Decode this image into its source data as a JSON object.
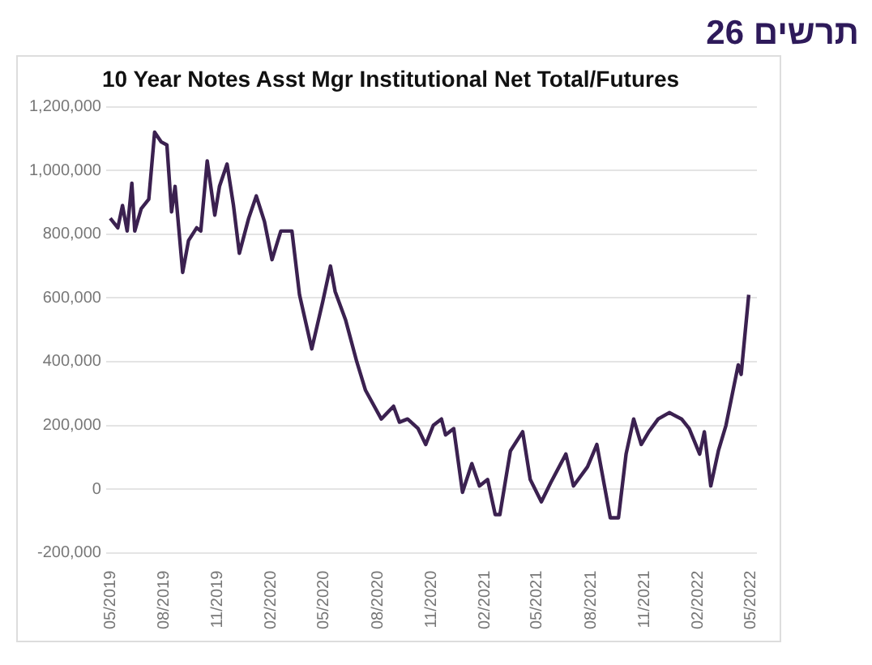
{
  "chart_data": {
    "type": "line",
    "title": "10 Year Notes Asst Mgr Institutional Net Total/Futures",
    "annotations": [
      "תרשים 26"
    ],
    "x": [
      "2019-05-01",
      "2019-05-14",
      "2019-05-22",
      "2019-05-30",
      "2019-06-07",
      "2019-06-12",
      "2019-06-23",
      "2019-07-06",
      "2019-07-16",
      "2019-07-27",
      "2019-08-06",
      "2019-08-14",
      "2019-08-20",
      "2019-09-02",
      "2019-09-12",
      "2019-09-26",
      "2019-10-03",
      "2019-10-14",
      "2019-10-27",
      "2019-11-04",
      "2019-11-17",
      "2019-11-28",
      "2019-12-08",
      "2019-12-24",
      "2020-01-06",
      "2020-01-20",
      "2020-02-02",
      "2020-02-17",
      "2020-03-07",
      "2020-03-20",
      "2020-04-10",
      "2020-04-29",
      "2020-05-12",
      "2020-05-20",
      "2020-06-07",
      "2020-06-26",
      "2020-07-11",
      "2020-08-07",
      "2020-08-28",
      "2020-09-07",
      "2020-09-21",
      "2020-10-09",
      "2020-10-22",
      "2020-11-04",
      "2020-11-18",
      "2020-11-25",
      "2020-12-09",
      "2020-12-24",
      "2021-01-09",
      "2021-01-22",
      "2021-02-05",
      "2021-02-18",
      "2021-02-26",
      "2021-03-16",
      "2021-04-06",
      "2021-04-19",
      "2021-05-08",
      "2021-05-24",
      "2021-06-19",
      "2021-07-02",
      "2021-07-26",
      "2021-08-11",
      "2021-08-24",
      "2021-09-03",
      "2021-09-17",
      "2021-09-30",
      "2021-10-13",
      "2021-10-26",
      "2021-11-08",
      "2021-11-24",
      "2021-12-13",
      "2022-01-03",
      "2022-01-16",
      "2022-02-03",
      "2022-02-11",
      "2022-02-22",
      "2022-03-07",
      "2022-03-20",
      "2022-04-10",
      "2022-04-15",
      "2022-04-28"
    ],
    "series": [
      {
        "color": "#3b2150",
        "values": [
          850000,
          820000,
          890000,
          810000,
          960000,
          810000,
          880000,
          910000,
          1120000,
          1090000,
          1080000,
          870000,
          950000,
          680000,
          780000,
          820000,
          810000,
          1030000,
          860000,
          950000,
          1020000,
          890000,
          740000,
          850000,
          920000,
          840000,
          720000,
          810000,
          810000,
          610000,
          440000,
          590000,
          700000,
          620000,
          530000,
          400000,
          310000,
          220000,
          260000,
          210000,
          220000,
          190000,
          140000,
          200000,
          220000,
          170000,
          190000,
          -10000,
          80000,
          10000,
          30000,
          -80000,
          -80000,
          120000,
          180000,
          30000,
          -40000,
          20000,
          110000,
          10000,
          70000,
          140000,
          10000,
          -90000,
          -90000,
          110000,
          220000,
          140000,
          180000,
          220000,
          240000,
          220000,
          190000,
          110000,
          180000,
          10000,
          120000,
          200000,
          390000,
          360000,
          610000
        ]
      }
    ],
    "xlim": [
      "2019-04-24",
      "2022-05-12"
    ],
    "xticks": [
      {
        "value": "2019-05-01",
        "label": "05/2019"
      },
      {
        "value": "2019-08-01",
        "label": "08/2019"
      },
      {
        "value": "2019-11-01",
        "label": "11/2019"
      },
      {
        "value": "2020-02-01",
        "label": "02/2020"
      },
      {
        "value": "2020-05-01",
        "label": "05/2020"
      },
      {
        "value": "2020-08-01",
        "label": "08/2020"
      },
      {
        "value": "2020-11-01",
        "label": "11/2020"
      },
      {
        "value": "2021-02-01",
        "label": "02/2021"
      },
      {
        "value": "2021-05-01",
        "label": "05/2021"
      },
      {
        "value": "2021-08-01",
        "label": "08/2021"
      },
      {
        "value": "2021-11-01",
        "label": "11/2021"
      },
      {
        "value": "2022-02-01",
        "label": "02/2022"
      },
      {
        "value": "2022-05-01",
        "label": "05/2022"
      }
    ],
    "ylim": [
      -200000,
      1200000
    ],
    "yticks": [
      {
        "value": -200000,
        "label": "-200,000"
      },
      {
        "value": 0,
        "label": "0"
      },
      {
        "value": 200000,
        "label": "200,000"
      },
      {
        "value": 400000,
        "label": "400,000"
      },
      {
        "value": 600000,
        "label": "600,000"
      },
      {
        "value": 800000,
        "label": "800,000"
      },
      {
        "value": 1000000,
        "label": "1,000,000"
      },
      {
        "value": 1200000,
        "label": "1,200,000"
      }
    ],
    "grid": "y",
    "legend": false,
    "marker": "none",
    "line_style": "solid"
  }
}
